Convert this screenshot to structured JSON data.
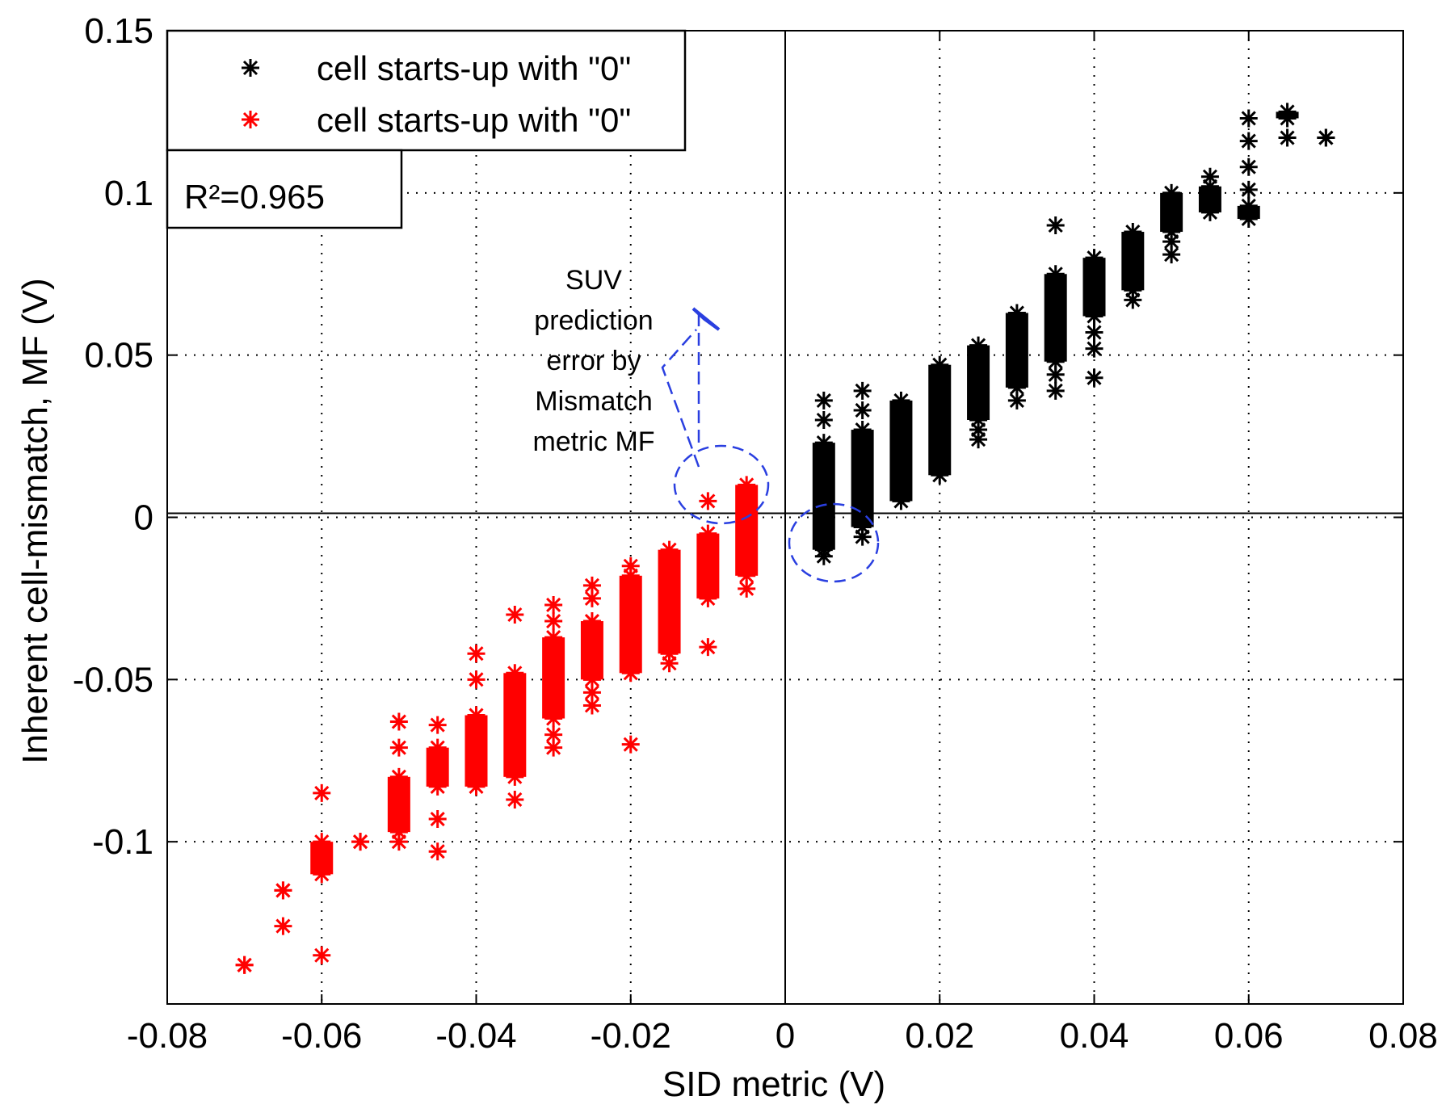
{
  "chart_data": {
    "type": "scatter",
    "title": "",
    "xlabel": "SID metric (V)",
    "ylabel": "Inherent cell-mismatch, MF (V)",
    "xlim": [
      -0.08,
      0.08
    ],
    "ylim": [
      -0.15,
      0.15
    ],
    "y_tick_range": [
      -0.1,
      0.15
    ],
    "grid": true,
    "legend_position": "top-left",
    "x_ticks": [
      -0.08,
      -0.06,
      -0.04,
      -0.02,
      0,
      0.02,
      0.04,
      0.06,
      0.08
    ],
    "x_tick_labels": [
      "-0.08",
      "-0.06",
      "-0.04",
      "-0.02",
      "0",
      "0.02",
      "0.04",
      "0.06",
      "0.08"
    ],
    "y_ticks": [
      -0.1,
      -0.05,
      0,
      0.05,
      0.1,
      0.15
    ],
    "y_tick_labels": [
      "-0.1",
      "-0.05",
      "0",
      "0.05",
      "0.1",
      "0.15"
    ],
    "r_squared_label": "R²=0.965",
    "annotation": [
      "SUV",
      "prediction",
      "error by",
      "Mismatch",
      "metric MF"
    ],
    "series": [
      {
        "name": "cell starts-up with \"0\"",
        "color": "#000000",
        "columns": [
          {
            "x": 0.005,
            "lo": -0.01,
            "hi": 0.023,
            "outliers": [
              -0.012,
              0.03,
              0.036
            ]
          },
          {
            "x": 0.01,
            "lo": -0.003,
            "hi": 0.027,
            "outliers": [
              -0.006,
              0.033,
              0.039
            ]
          },
          {
            "x": 0.015,
            "lo": 0.005,
            "hi": 0.036,
            "outliers": []
          },
          {
            "x": 0.02,
            "lo": 0.013,
            "hi": 0.047,
            "outliers": []
          },
          {
            "x": 0.025,
            "lo": 0.03,
            "hi": 0.053,
            "outliers": [
              0.024,
              0.027
            ]
          },
          {
            "x": 0.03,
            "lo": 0.04,
            "hi": 0.063,
            "outliers": [
              0.036
            ]
          },
          {
            "x": 0.035,
            "lo": 0.048,
            "hi": 0.075,
            "outliers": [
              0.039,
              0.044,
              0.09
            ]
          },
          {
            "x": 0.04,
            "lo": 0.062,
            "hi": 0.08,
            "outliers": [
              0.043,
              0.052,
              0.057
            ]
          },
          {
            "x": 0.045,
            "lo": 0.07,
            "hi": 0.088,
            "outliers": [
              0.067
            ]
          },
          {
            "x": 0.05,
            "lo": 0.088,
            "hi": 0.1,
            "outliers": [
              0.081,
              0.085
            ]
          },
          {
            "x": 0.055,
            "lo": 0.094,
            "hi": 0.102,
            "outliers": [
              0.105
            ]
          },
          {
            "x": 0.06,
            "lo": 0.092,
            "hi": 0.096,
            "outliers": [
              0.101,
              0.108,
              0.116,
              0.123
            ]
          },
          {
            "x": 0.065,
            "lo": 0.123,
            "hi": 0.125,
            "outliers": [
              0.117
            ]
          },
          {
            "x": 0.07,
            "lo": 0.117,
            "hi": 0.117,
            "outliers": []
          }
        ]
      },
      {
        "name": "cell starts-up with \"0\"",
        "color": "#ff0000",
        "columns": [
          {
            "x": -0.005,
            "lo": -0.018,
            "hi": 0.01,
            "outliers": [
              -0.022
            ]
          },
          {
            "x": -0.01,
            "lo": -0.025,
            "hi": -0.005,
            "outliers": [
              -0.04,
              0.005
            ]
          },
          {
            "x": -0.015,
            "lo": -0.042,
            "hi": -0.01,
            "outliers": [
              -0.045
            ]
          },
          {
            "x": -0.02,
            "lo": -0.048,
            "hi": -0.018,
            "outliers": [
              -0.07,
              -0.015
            ]
          },
          {
            "x": -0.025,
            "lo": -0.05,
            "hi": -0.032,
            "outliers": [
              -0.058,
              -0.054,
              -0.025,
              -0.021
            ]
          },
          {
            "x": -0.03,
            "lo": -0.062,
            "hi": -0.037,
            "outliers": [
              -0.071,
              -0.067,
              -0.032,
              -0.027
            ]
          },
          {
            "x": -0.035,
            "lo": -0.08,
            "hi": -0.048,
            "outliers": [
              -0.087,
              -0.03
            ]
          },
          {
            "x": -0.04,
            "lo": -0.083,
            "hi": -0.061,
            "outliers": [
              -0.05,
              -0.042
            ]
          },
          {
            "x": -0.045,
            "lo": -0.083,
            "hi": -0.071,
            "outliers": [
              -0.103,
              -0.093,
              -0.064
            ]
          },
          {
            "x": -0.05,
            "lo": -0.097,
            "hi": -0.08,
            "outliers": [
              -0.1,
              -0.071,
              -0.063
            ]
          },
          {
            "x": -0.055,
            "lo": -0.1,
            "hi": -0.1,
            "outliers": []
          },
          {
            "x": -0.06,
            "lo": -0.11,
            "hi": -0.1,
            "outliers": [
              -0.135,
              -0.085
            ]
          },
          {
            "x": -0.065,
            "lo": -0.115,
            "hi": -0.115,
            "outliers": [
              -0.126
            ]
          },
          {
            "x": -0.07,
            "lo": -0.138,
            "hi": -0.138,
            "outliers": []
          }
        ]
      }
    ]
  }
}
